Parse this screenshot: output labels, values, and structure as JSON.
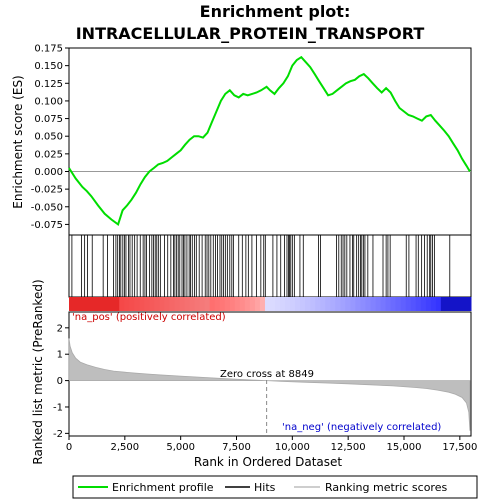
{
  "chart_data": [
    {
      "type": "line",
      "title_line1": "Enrichment plot:",
      "title_line2": "INTRACELLULAR_PROTEIN_TRANSPORT",
      "ylabel": "Enrichment score (ES)",
      "ylim": [
        -0.09,
        0.175
      ],
      "xlim": [
        0,
        18000
      ],
      "yticks": [
        "-0.075",
        "-0.050",
        "-0.025",
        "0.000",
        "0.025",
        "0.050",
        "0.075",
        "0.100",
        "0.125",
        "0.150",
        "0.175"
      ],
      "series": [
        {
          "color": "#00dd00",
          "x": [
            0,
            300,
            600,
            800,
            1000,
            1300,
            1600,
            1900,
            2200,
            2400,
            2600,
            2800,
            3000,
            3200,
            3400,
            3600,
            3800,
            4000,
            4200,
            4400,
            4600,
            4800,
            5000,
            5200,
            5400,
            5600,
            5800,
            6000,
            6200,
            6400,
            6600,
            6800,
            7000,
            7200,
            7400,
            7600,
            7800,
            8000,
            8200,
            8400,
            8600,
            8849,
            9000,
            9200,
            9400,
            9600,
            9800,
            10000,
            10200,
            10400,
            10600,
            10800,
            11000,
            11200,
            11400,
            11600,
            11800,
            12000,
            12200,
            12400,
            12600,
            12800,
            13000,
            13200,
            13400,
            13600,
            13800,
            14000,
            14200,
            14400,
            14600,
            14800,
            15000,
            15200,
            15400,
            15600,
            15800,
            16000,
            16200,
            16400,
            16600,
            16800,
            17000,
            17200,
            17400,
            17600,
            17800,
            17950
          ],
          "values": [
            0.005,
            -0.01,
            -0.022,
            -0.028,
            -0.035,
            -0.048,
            -0.06,
            -0.068,
            -0.075,
            -0.055,
            -0.048,
            -0.04,
            -0.03,
            -0.018,
            -0.008,
            0.0,
            0.005,
            0.01,
            0.012,
            0.015,
            0.02,
            0.025,
            0.03,
            0.038,
            0.045,
            0.05,
            0.05,
            0.048,
            0.055,
            0.07,
            0.085,
            0.1,
            0.11,
            0.115,
            0.108,
            0.105,
            0.11,
            0.108,
            0.11,
            0.112,
            0.115,
            0.12,
            0.115,
            0.11,
            0.118,
            0.125,
            0.135,
            0.15,
            0.158,
            0.162,
            0.155,
            0.148,
            0.138,
            0.128,
            0.118,
            0.108,
            0.11,
            0.115,
            0.12,
            0.125,
            0.128,
            0.13,
            0.135,
            0.138,
            0.132,
            0.125,
            0.118,
            0.112,
            0.118,
            0.112,
            0.1,
            0.09,
            0.085,
            0.08,
            0.078,
            0.075,
            0.072,
            0.078,
            0.08,
            0.072,
            0.065,
            0.058,
            0.05,
            0.04,
            0.03,
            0.018,
            0.008,
            0.0
          ]
        }
      ]
    },
    {
      "type": "hits",
      "hits": [
        130,
        560,
        700,
        830,
        1040,
        1530,
        1720,
        1990,
        2100,
        2180,
        2260,
        2320,
        2410,
        2480,
        2550,
        2660,
        2730,
        2830,
        2940,
        3050,
        3190,
        3320,
        3400,
        3470,
        3610,
        3710,
        3780,
        3860,
        3930,
        4000,
        4090,
        4280,
        4420,
        4560,
        4680,
        4740,
        4820,
        4890,
        4960,
        5060,
        5130,
        5190,
        5280,
        5380,
        5440,
        5520,
        5620,
        5700,
        5830,
        5960,
        6100,
        6180,
        6260,
        6350,
        6460,
        6560,
        6650,
        6760,
        6840,
        6920,
        7000,
        7090,
        7200,
        7290,
        7360,
        7600,
        7760,
        7920,
        8030,
        8190,
        8390,
        8590,
        8720,
        8790,
        9130,
        9310,
        9480,
        9650,
        9760,
        9830,
        9870,
        9930,
        10000,
        10090,
        10340,
        10490,
        11170,
        11260,
        11980,
        12080,
        12190,
        12270,
        12350,
        12440,
        12580,
        12690,
        12750,
        12880,
        12970,
        13050,
        13110,
        13180,
        13250,
        13380,
        13610,
        14060,
        14200,
        14280,
        14380,
        15100,
        15220,
        15540,
        15640,
        15790,
        15920,
        16040,
        16150,
        16200,
        16280,
        16360,
        17050
      ]
    },
    {
      "type": "area",
      "ylabel": "Ranked list metric (PreRanked)",
      "xlabel": "Rank in Ordered Dataset",
      "ylim": [
        -2.1,
        2.6
      ],
      "xlim": [
        0,
        18000
      ],
      "yticks": [
        "-2",
        "-1",
        "0",
        "1",
        "2"
      ],
      "xticks": [
        "0",
        "2,500",
        "5,000",
        "7,500",
        "10,000",
        "12,500",
        "15,000",
        "17,500"
      ],
      "zero_cross_label": "Zero cross at 8849",
      "zero_cross": 8849,
      "pos_label": "'na_pos' (positively correlated)",
      "neg_label": "'na_neg' (negatively correlated)",
      "x": [
        0,
        50,
        150,
        300,
        500,
        800,
        1200,
        1600,
        2000,
        2500,
        3000,
        3500,
        4000,
        5000,
        6000,
        7000,
        8000,
        8849,
        9500,
        10500,
        11500,
        12500,
        13500,
        14500,
        15500,
        16000,
        16500,
        17000,
        17300,
        17600,
        17800,
        17900,
        17950
      ],
      "values": [
        1.6,
        1.3,
        1.05,
        0.85,
        0.7,
        0.6,
        0.5,
        0.42,
        0.36,
        0.32,
        0.28,
        0.25,
        0.22,
        0.17,
        0.12,
        0.07,
        0.03,
        0.0,
        -0.03,
        -0.06,
        -0.09,
        -0.12,
        -0.16,
        -0.2,
        -0.26,
        -0.3,
        -0.36,
        -0.44,
        -0.52,
        -0.64,
        -0.85,
        -1.2,
        -1.9
      ]
    }
  ],
  "legend": {
    "enrichment_profile": "Enrichment profile",
    "hits": "Hits",
    "ranking_metric": "Ranking metric scores"
  },
  "colors": {
    "es_line": "#00dd00",
    "metric_fill": "#bebebe",
    "pos_text": "#cc0000",
    "neg_text": "#0000cc"
  }
}
